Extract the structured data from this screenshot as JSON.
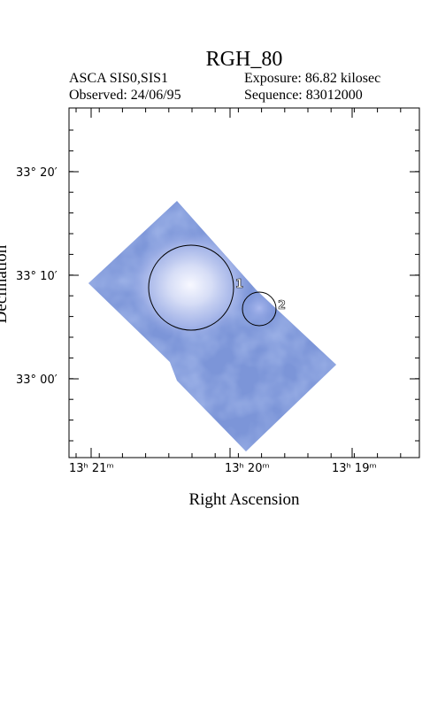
{
  "header": {
    "title": "RGH_80",
    "instrument": "ASCA SIS0,SIS1",
    "exposure": "Exposure: 86.82 kilosec",
    "observed": "Observed: 24/06/95",
    "sequence": "Sequence: 83012000"
  },
  "axes": {
    "xlabel": "Right Ascension",
    "ylabel": "Declination",
    "x_ticks": [
      "13ʰ 21ᵐ",
      "13ʰ 20ᵐ",
      "13ʰ 19ᵐ"
    ],
    "y_ticks": [
      "33° 20′",
      "33° 10′",
      "33° 00′"
    ]
  },
  "sources": [
    {
      "label": "1"
    },
    {
      "label": "2"
    }
  ],
  "colors": {
    "field": "#7c95d8",
    "field_dark": "#5f7ad0",
    "bright": "#f4f6ff"
  }
}
